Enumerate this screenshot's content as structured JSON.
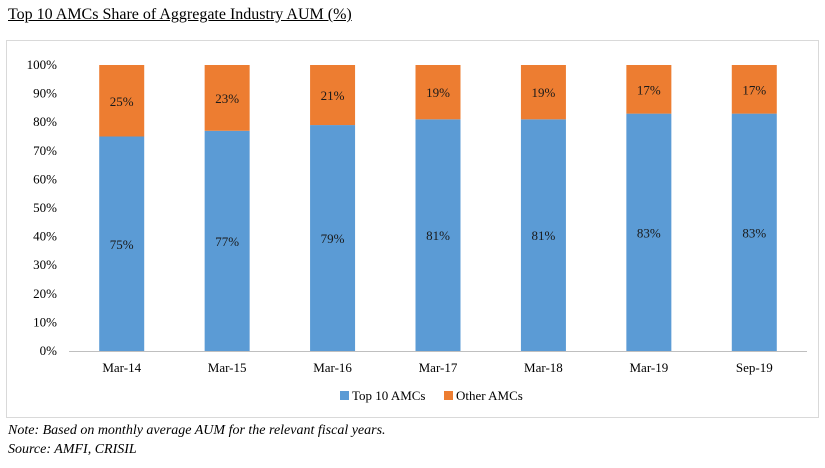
{
  "title": "Top 10 AMCs Share of Aggregate Industry AUM (%)",
  "note": "Note: Based on monthly average AUM for the relevant fiscal years.",
  "source": "Source: AMFI, CRISIL",
  "colors": {
    "top10": "#5b9bd5",
    "other": "#ed7d31",
    "axis": "#bfbfbf"
  },
  "chart_data": {
    "type": "bar",
    "stacked": true,
    "title": "Top 10 AMCs Share of Aggregate Industry AUM (%)",
    "categories": [
      "Mar-14",
      "Mar-15",
      "Mar-16",
      "Mar-17",
      "Mar-18",
      "Mar-19",
      "Sep-19"
    ],
    "series": [
      {
        "name": "Top 10 AMCs",
        "values": [
          75,
          77,
          79,
          81,
          81,
          83,
          83
        ],
        "labels": [
          "75%",
          "77%",
          "79%",
          "81%",
          "81%",
          "83%",
          "83%"
        ]
      },
      {
        "name": "Other AMCs",
        "values": [
          25,
          23,
          21,
          19,
          19,
          17,
          17
        ],
        "labels": [
          "25%",
          "23%",
          "21%",
          "19%",
          "19%",
          "17%",
          "17%"
        ]
      }
    ],
    "yticks": [
      "0%",
      "10%",
      "20%",
      "30%",
      "40%",
      "50%",
      "60%",
      "70%",
      "80%",
      "90%",
      "100%"
    ],
    "ylim": [
      0,
      100
    ],
    "grid": false,
    "legend": "bottom"
  }
}
